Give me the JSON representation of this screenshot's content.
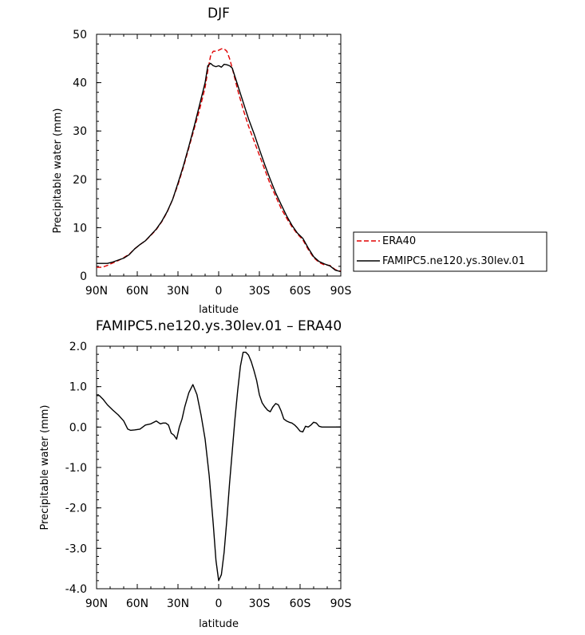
{
  "chart_data": [
    {
      "type": "line",
      "title": "DJF",
      "xlabel": "latitude",
      "ylabel": "Precipitable water (mm)",
      "xlim": [
        90,
        -90
      ],
      "ylim": [
        0,
        50
      ],
      "x_ticks": [
        90,
        60,
        30,
        0,
        -30,
        -60,
        -90
      ],
      "x_tick_labels": [
        "90N",
        "60N",
        "30N",
        "0",
        "30S",
        "60S",
        "90S"
      ],
      "y_ticks": [
        0,
        10,
        20,
        30,
        40,
        50
      ],
      "y_tick_labels": [
        "0",
        "10",
        "20",
        "30",
        "40",
        "50"
      ],
      "legend_position": "right",
      "series": [
        {
          "name": "ERA40",
          "color": "#e00000",
          "dash": "dashed",
          "x": [
            90,
            86,
            82,
            78,
            74,
            70,
            66,
            62,
            58,
            54,
            50,
            46,
            42,
            38,
            34,
            30,
            26,
            22,
            18,
            14,
            10,
            8,
            6,
            4,
            2,
            0,
            -2,
            -4,
            -6,
            -8,
            -10,
            -14,
            -18,
            -22,
            -26,
            -30,
            -34,
            -38,
            -42,
            -46,
            -50,
            -54,
            -58,
            -62,
            -66,
            -70,
            -74,
            -78,
            -82,
            -86,
            -90
          ],
          "y": [
            1.8,
            1.8,
            2.2,
            2.7,
            3.2,
            3.8,
            4.5,
            5.6,
            6.5,
            7.3,
            8.4,
            9.6,
            11.2,
            13.2,
            15.8,
            18.9,
            22.5,
            26.5,
            30.5,
            34.5,
            39.0,
            42.5,
            45.5,
            46.5,
            46.5,
            46.7,
            47.0,
            47.0,
            46.5,
            45.0,
            43.0,
            38.5,
            34.5,
            31.0,
            28.0,
            25.0,
            22.0,
            19.0,
            16.5,
            14.0,
            12.0,
            10.2,
            8.7,
            7.5,
            5.5,
            3.8,
            2.8,
            2.3,
            2.2,
            1.3,
            1.0
          ]
        },
        {
          "name": "FAMIPC5.ne120.ys.30lev.01",
          "color": "#000000",
          "dash": "solid",
          "x": [
            90,
            86,
            82,
            78,
            74,
            70,
            66,
            62,
            58,
            54,
            50,
            46,
            42,
            38,
            34,
            30,
            26,
            22,
            18,
            14,
            10,
            8,
            6,
            4,
            2,
            0,
            -2,
            -4,
            -6,
            -8,
            -10,
            -14,
            -18,
            -22,
            -26,
            -30,
            -34,
            -38,
            -42,
            -46,
            -50,
            -54,
            -58,
            -62,
            -66,
            -70,
            -74,
            -78,
            -82,
            -86,
            -90
          ],
          "y": [
            2.6,
            2.6,
            2.6,
            2.9,
            3.3,
            3.7,
            4.4,
            5.6,
            6.5,
            7.3,
            8.5,
            9.7,
            11.3,
            13.3,
            15.8,
            19.2,
            22.8,
            26.8,
            31.0,
            35.5,
            40.0,
            43.5,
            44.0,
            43.5,
            43.3,
            43.5,
            43.2,
            43.8,
            43.7,
            43.5,
            43.0,
            39.5,
            36.0,
            32.5,
            29.5,
            26.2,
            23.0,
            20.0,
            17.2,
            14.8,
            12.5,
            10.5,
            8.9,
            7.8,
            5.8,
            4.0,
            3.0,
            2.5,
            2.1,
            1.2,
            0.9
          ]
        }
      ]
    },
    {
      "type": "line",
      "title": "FAMIPC5.ne120.ys.30lev.01 – ERA40",
      "xlabel": "latitude",
      "ylabel": "Precipitable water (mm)",
      "xlim": [
        90,
        -90
      ],
      "ylim": [
        -4.0,
        2.0
      ],
      "x_ticks": [
        90,
        60,
        30,
        0,
        -30,
        -60,
        -90
      ],
      "x_tick_labels": [
        "90N",
        "60N",
        "30N",
        "0",
        "30S",
        "60S",
        "90S"
      ],
      "y_ticks": [
        2.0,
        1.0,
        0.0,
        -1.0,
        -2.0,
        -3.0,
        -4.0
      ],
      "y_tick_labels": [
        "2.0",
        "1.0",
        "0.0",
        "-1.0",
        "-2.0",
        "-3.0",
        "-4.0"
      ],
      "series": [
        {
          "color": "#000000",
          "dash": "solid",
          "x": [
            90,
            88,
            85,
            82,
            78,
            74,
            70,
            67,
            65,
            62,
            58,
            54,
            50,
            46,
            43,
            41,
            39,
            37,
            35,
            33,
            31,
            29,
            27,
            25,
            22,
            19,
            16,
            13,
            10,
            7,
            4,
            2,
            0,
            -2,
            -4,
            -6,
            -8,
            -10,
            -12,
            -14,
            -16,
            -18,
            -20,
            -22,
            -24,
            -26,
            -28,
            -30,
            -32,
            -34,
            -36,
            -38,
            -40,
            -42,
            -44,
            -46,
            -48,
            -50,
            -52,
            -54,
            -56,
            -58,
            -60,
            -62,
            -64,
            -66,
            -68,
            -70,
            -72,
            -74,
            -76,
            -78,
            -80,
            -82,
            -84,
            -86,
            -88,
            -90
          ],
          "y": [
            0.78,
            0.78,
            0.68,
            0.55,
            0.42,
            0.3,
            0.15,
            -0.05,
            -0.08,
            -0.07,
            -0.05,
            0.05,
            0.08,
            0.15,
            0.08,
            0.1,
            0.1,
            0.05,
            -0.15,
            -0.2,
            -0.3,
            0.0,
            0.2,
            0.5,
            0.85,
            1.05,
            0.8,
            0.3,
            -0.3,
            -1.2,
            -2.4,
            -3.3,
            -3.8,
            -3.65,
            -3.1,
            -2.3,
            -1.4,
            -0.6,
            0.2,
            0.9,
            1.5,
            1.85,
            1.85,
            1.78,
            1.62,
            1.4,
            1.15,
            0.8,
            0.6,
            0.5,
            0.42,
            0.38,
            0.5,
            0.58,
            0.55,
            0.4,
            0.2,
            0.15,
            0.12,
            0.1,
            0.05,
            -0.02,
            -0.1,
            -0.12,
            0.02,
            0.0,
            0.05,
            0.12,
            0.1,
            0.02,
            0.0,
            0.0,
            0.0,
            0.0,
            0.0,
            0.0,
            0.0,
            0.0
          ]
        }
      ]
    }
  ]
}
